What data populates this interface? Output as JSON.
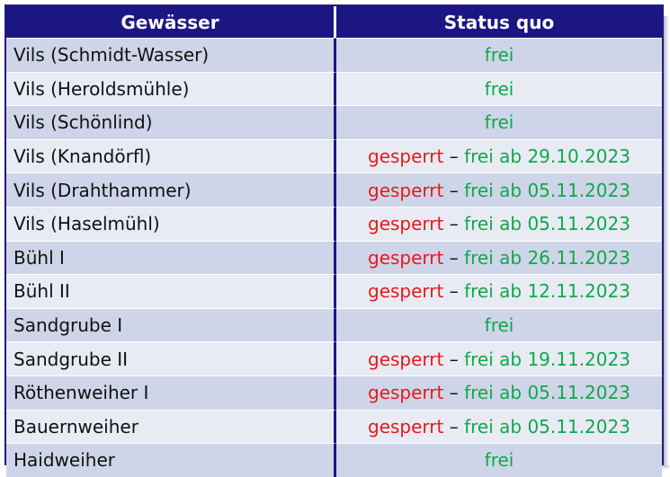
{
  "headers": {
    "water": "Gewässer",
    "status": "Status quo"
  },
  "colors": {
    "header_bg": "#1c1683",
    "row_dark": "#cfd5e8",
    "row_light": "#e8ebf4",
    "closed": "#e81818",
    "open": "#10a84a"
  },
  "rows": [
    {
      "name": "Vils (Schmidt-Wasser)",
      "closed": "",
      "sep": "",
      "open": "frei"
    },
    {
      "name": "Vils (Heroldsmühle)",
      "closed": "",
      "sep": "",
      "open": "frei"
    },
    {
      "name": "Vils (Schönlind)",
      "closed": "",
      "sep": "",
      "open": "frei"
    },
    {
      "name": "Vils (Knandörfl)",
      "closed": "gesperrt",
      "sep": " – ",
      "open": "frei ab 29.10.2023"
    },
    {
      "name": "Vils (Drahthammer)",
      "closed": "gesperrt",
      "sep": " – ",
      "open": "frei ab 05.11.2023"
    },
    {
      "name": "Vils (Haselmühl)",
      "closed": "gesperrt",
      "sep": " – ",
      "open": "frei ab 05.11.2023"
    },
    {
      "name": "Bühl I",
      "closed": "gesperrt",
      "sep": " – ",
      "open": "frei ab 26.11.2023"
    },
    {
      "name": "Bühl II",
      "closed": "gesperrt",
      "sep": " – ",
      "open": "frei ab 12.11.2023"
    },
    {
      "name": "Sandgrube I",
      "closed": "",
      "sep": "",
      "open": "frei"
    },
    {
      "name": "Sandgrube II",
      "closed": "gesperrt",
      "sep": " – ",
      "open": "frei ab 19.11.2023"
    },
    {
      "name": "Röthenweiher I",
      "closed": "gesperrt",
      "sep": " – ",
      "open": "frei ab 05.11.2023"
    },
    {
      "name": "Bauernweiher",
      "closed": "gesperrt",
      "sep": " – ",
      "open": "frei ab 05.11.2023"
    },
    {
      "name": "Haidweiher",
      "closed": "",
      "sep": "",
      "open": "frei"
    }
  ]
}
